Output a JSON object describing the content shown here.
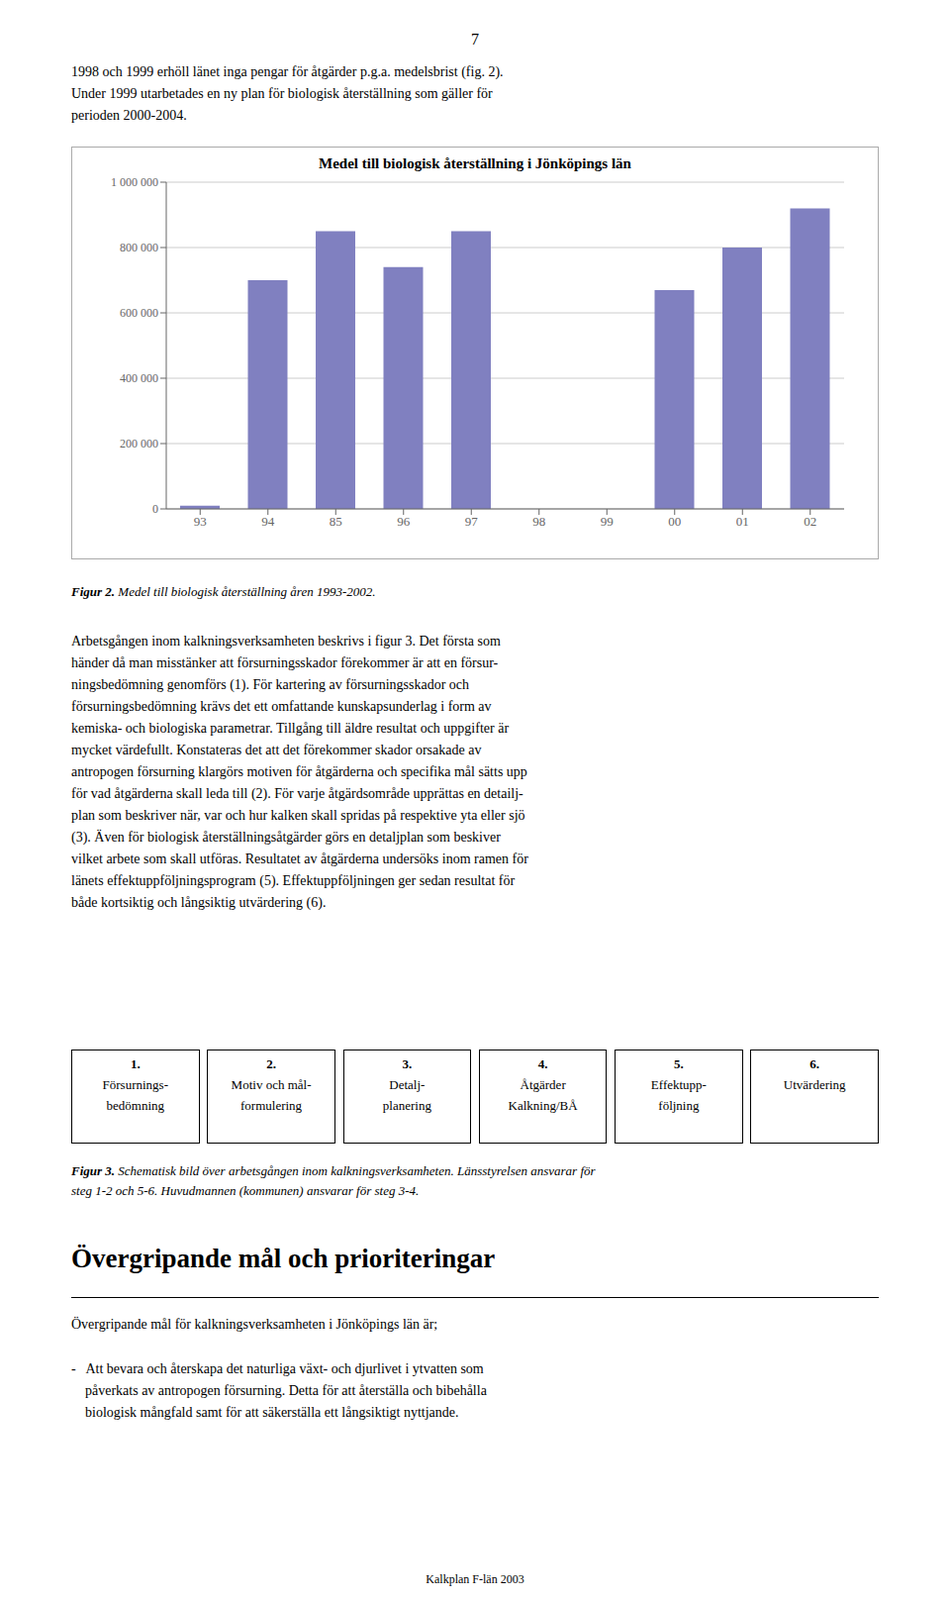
{
  "chart_data": {
    "type": "bar",
    "title": "Medel till biologisk återställning i Jönköpings län",
    "categories": [
      "93",
      "94",
      "85",
      "96",
      "97",
      "98",
      "99",
      "00",
      "01",
      "02"
    ],
    "values": [
      10000,
      700000,
      850000,
      740000,
      850000,
      0,
      0,
      670000,
      800000,
      920000
    ],
    "color": "#8080C0",
    "ylim": [
      0,
      1000000
    ],
    "yticks": [
      0,
      {
        "value": 200000,
        "label": "200 000"
      },
      {
        "value": 400000,
        "label": "400 000"
      },
      {
        "value": 600000,
        "label": "600 000"
      },
      {
        "value": 800000,
        "label": "800 000"
      },
      {
        "value": 1000000,
        "label": "1 000 000"
      }
    ],
    "grid": true,
    "annotations": [
      "7",
      "1998 och 1999 erhöll länet inga pengar för åtgärder p.g.a. medelsbrist (fig. 2).",
      "Under 1999 utarbetades en ny plan för biologisk återställning som gäller för",
      "perioden 2000-2004.",
      "Figur 2.",
      "Medel till biologisk återställning åren 1993-2002.",
      "Arbetsgången inom kalkningsverksamheten beskrivs i figur 3. Det första som",
      "händer då man misstänker att försurningsskador förekommer är att en försur-",
      "ningsbedömning genomförs (1). För kartering av försurningsskador och",
      "försurningsbedömning krävs det ett omfattande kunskapsunderlag i form av",
      "kemiska- och biologiska parametrar. Tillgång till äldre resultat och uppgifter är",
      "mycket värdefullt. Konstateras det att det förekommer skador orsakade av",
      "antropogen försurning klargörs motiven för åtgärderna och specifika mål sätts upp",
      "för vad åtgärderna skall leda till (2). För varje åtgärdsområde upprättas en detailj-",
      "plan som beskriver när, var och hur kalken skall spridas på respektive yta eller sjö",
      "(3). Även för biologisk återställningsåtgärder görs en detaljplan som beskiver",
      "vilket arbete som skall utföras. Resultatet av åtgärderna undersöks inom ramen för",
      "länets effektuppföljningsprogram (5). Effektuppföljningen ger sedan resultat för",
      "både kortsiktig och långsiktig utvärdering (6).",
      "1.",
      "Försurnings-",
      "bedömning",
      "2.",
      "Motiv och mål-",
      "formulering",
      "3.",
      "Detalj-",
      "planering",
      "4.",
      "Åtgärder",
      "Kalkning/BÅ",
      "5.",
      "Effektupp-",
      "följning",
      "6.",
      "Utvärdering",
      "Figur 3.",
      "Schematisk bild över arbetsgången inom kalkningsverksamheten. Länsstyrelsen ansvarar för",
      "steg 1-2 och 5-6. Huvudmannen (kommunen) ansvarar för steg 3-4.",
      "Övergripande mål och prioriteringar",
      "Övergripande mål för kalkningsverksamheten i Jönköpings län är;",
      "-   Att bevara och återskapa det naturliga växt- och djurlivet i ytvatten som",
      "    påverkats av antropogen försurning. Detta för att återställa och bibehålla",
      "    biologisk mångfald samt för att säkerställa ett långsiktigt nyttjande.",
      "Kalkplan F-län 2003"
    ]
  }
}
